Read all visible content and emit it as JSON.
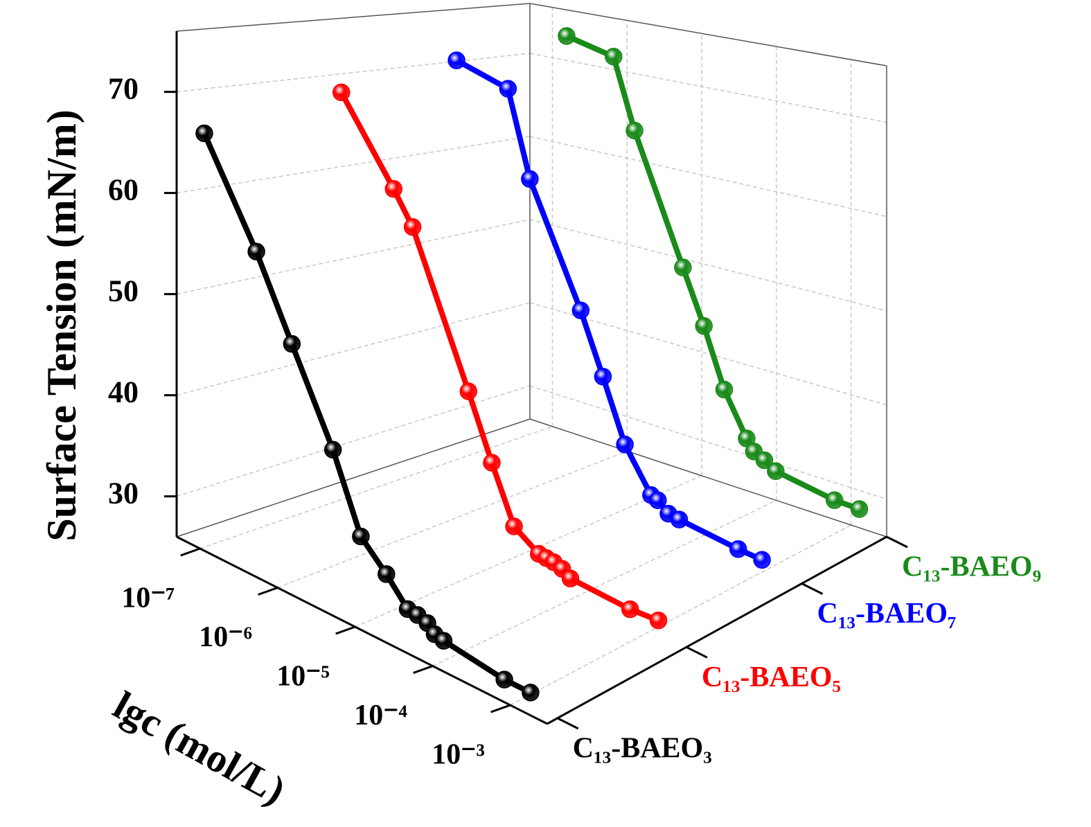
{
  "chart_data": {
    "type": "line3d",
    "x_label": "lgc (mol/L)",
    "y_label": "Surface Tension (mN/m)",
    "xlog": true,
    "xlim": [
      5e-08,
      0.003
    ],
    "xticks": [
      {
        "value": 1e-07,
        "label": "10⁻⁷"
      },
      {
        "value": 1e-06,
        "label": "10⁻⁶"
      },
      {
        "value": 1e-05,
        "label": "10⁻⁵"
      },
      {
        "value": 0.0001,
        "label": "10⁻⁴"
      },
      {
        "value": 0.001,
        "label": "10⁻³"
      }
    ],
    "ylim": [
      26,
      76
    ],
    "yticks": [
      30,
      40,
      50,
      60,
      70
    ],
    "grid": true,
    "series": [
      {
        "name": "C₁₃-BAEO₃",
        "color": "#000000",
        "x": [
          8.3e-08,
          3.9e-07,
          1.12e-06,
          3.8e-06,
          8.7e-06,
          1.86e-05,
          3.5e-05,
          4.7e-05,
          6.3e-05,
          7.8e-05,
          0.000102,
          0.00062,
          0.00135
        ],
        "values": [
          66.4,
          56.8,
          49.3,
          40.9,
          33.9,
          31.5,
          29.2,
          29.1,
          28.8,
          28.1,
          27.9,
          27.1,
          27.1
        ]
      },
      {
        "name": "C₁₃-BAEO₅",
        "color": "#ff0000",
        "x": [
          9.1e-08,
          4.4e-07,
          7.8e-07,
          4.2e-06,
          8.5e-06,
          1.66e-05,
          3.5e-05,
          4.4e-05,
          5.5e-05,
          7.1e-05,
          9.1e-05,
          0.00055,
          0.00129
        ],
        "values": [
          68.9,
          60.5,
          57.2,
          42.4,
          36.1,
          30.6,
          28.9,
          28.8,
          28.7,
          28.4,
          27.8,
          27.3,
          27.4
        ]
      },
      {
        "name": "C₁₃-BAEO₇",
        "color": "#0000ff",
        "x": [
          7.9e-08,
          3.8e-07,
          7.4e-07,
          3.5e-06,
          6.9e-06,
          1.35e-05,
          3e-05,
          3.7e-05,
          5.1e-05,
          7.1e-05,
          0.00043,
          0.00089
        ],
        "values": [
          70.7,
          68.9,
          59.5,
          46.7,
          40.3,
          33.8,
          29.4,
          29.1,
          28.1,
          27.9,
          27.1,
          26.9
        ]
      },
      {
        "name": "C₁₃-BAEO₉",
        "color": "#1a8a1a",
        "x": [
          1.55e-07,
          6.6e-07,
          1.26e-06,
          5.6e-06,
          1.07e-05,
          2e-05,
          4e-05,
          5e-05,
          6.9e-05,
          9.8e-05,
          0.0006,
          0.00129
        ],
        "values": [
          72.9,
          71.5,
          63.4,
          49.0,
          43.0,
          36.5,
          31.8,
          30.6,
          30.0,
          29.2,
          28.1,
          28.0
        ]
      }
    ]
  }
}
